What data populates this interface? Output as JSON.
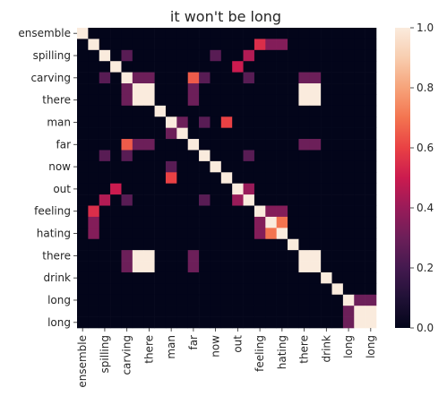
{
  "chart_data": {
    "type": "heatmap",
    "title": "it won't be long",
    "xlabel": "",
    "ylabel": "",
    "row_labels": [
      "ensemble",
      "",
      "spilling",
      "",
      "carving",
      "",
      "there",
      "",
      "man",
      "",
      "far",
      "",
      "now",
      "",
      "out",
      "",
      "feeling",
      "",
      "hating",
      "",
      "there",
      "",
      "drink",
      "",
      "long",
      "",
      "long"
    ],
    "col_labels": [
      "ensemble",
      "",
      "spilling",
      "",
      "carving",
      "",
      "there",
      "",
      "man",
      "",
      "far",
      "",
      "now",
      "",
      "out",
      "",
      "feeling",
      "",
      "hating",
      "",
      "there",
      "",
      "drink",
      "",
      "long",
      "",
      "long"
    ],
    "values": [
      [
        1,
        0,
        0,
        0,
        0,
        0,
        0,
        0,
        0,
        0,
        0,
        0,
        0,
        0,
        0,
        0,
        0,
        0,
        0,
        0,
        0,
        0,
        0,
        0,
        0,
        0,
        0
      ],
      [
        0,
        1,
        0,
        0,
        0,
        0,
        0,
        0,
        0,
        0,
        0,
        0,
        0,
        0,
        0,
        0,
        0.55,
        0.35,
        0.35,
        0,
        0,
        0,
        0,
        0,
        0,
        0,
        0
      ],
      [
        0,
        0,
        1,
        0,
        0.25,
        0,
        0,
        0,
        0,
        0,
        0,
        0,
        0.25,
        0,
        0,
        0.45,
        0,
        0,
        0,
        0,
        0,
        0,
        0,
        0,
        0,
        0,
        0
      ],
      [
        0,
        0,
        0,
        1,
        0,
        0,
        0,
        0,
        0,
        0,
        0,
        0,
        0,
        0,
        0.5,
        0,
        0,
        0,
        0,
        0,
        0,
        0,
        0,
        0,
        0,
        0,
        0
      ],
      [
        0,
        0,
        0.25,
        0,
        1,
        0.3,
        0.3,
        0,
        0,
        0,
        0.65,
        0.25,
        0,
        0,
        0,
        0.25,
        0,
        0,
        0,
        0,
        0.3,
        0.3,
        0,
        0,
        0,
        0,
        0
      ],
      [
        0,
        0,
        0,
        0,
        0.3,
        1,
        1,
        0,
        0,
        0,
        0.3,
        0,
        0,
        0,
        0,
        0,
        0,
        0,
        0,
        0,
        1,
        1,
        0,
        0,
        0,
        0,
        0
      ],
      [
        0,
        0,
        0,
        0,
        0.3,
        1,
        1,
        0,
        0,
        0,
        0.3,
        0,
        0,
        0,
        0,
        0,
        0,
        0,
        0,
        0,
        1,
        1,
        0,
        0,
        0,
        0,
        0
      ],
      [
        0,
        0,
        0,
        0,
        0,
        0,
        0,
        1,
        0,
        0,
        0,
        0,
        0,
        0,
        0,
        0,
        0,
        0,
        0,
        0,
        0,
        0,
        0,
        0,
        0,
        0,
        0
      ],
      [
        0,
        0,
        0,
        0,
        0,
        0,
        0,
        0,
        1,
        0.3,
        0,
        0.25,
        0,
        0.6,
        0,
        0,
        0,
        0,
        0,
        0,
        0,
        0,
        0,
        0,
        0,
        0,
        0
      ],
      [
        0,
        0,
        0,
        0,
        0,
        0,
        0,
        0,
        0.3,
        1,
        0,
        0,
        0,
        0,
        0,
        0,
        0,
        0,
        0,
        0,
        0,
        0,
        0,
        0,
        0,
        0,
        0
      ],
      [
        0,
        0,
        0,
        0,
        0.65,
        0.3,
        0.3,
        0,
        0,
        0,
        1,
        0,
        0,
        0,
        0,
        0,
        0,
        0,
        0,
        0,
        0.3,
        0.3,
        0,
        0,
        0,
        0,
        0
      ],
      [
        0,
        0,
        0.25,
        0,
        0.25,
        0,
        0,
        0,
        0,
        0,
        0,
        1,
        0,
        0,
        0,
        0.25,
        0,
        0,
        0,
        0,
        0,
        0,
        0,
        0,
        0,
        0,
        0
      ],
      [
        0,
        0,
        0,
        0,
        0,
        0,
        0,
        0,
        0.25,
        0,
        0,
        0,
        1,
        0,
        0,
        0,
        0,
        0,
        0,
        0,
        0,
        0,
        0,
        0,
        0,
        0,
        0
      ],
      [
        0,
        0,
        0,
        0,
        0,
        0,
        0,
        0,
        0.6,
        0,
        0,
        0,
        0,
        1,
        0,
        0,
        0,
        0,
        0,
        0,
        0,
        0,
        0,
        0,
        0,
        0,
        0
      ],
      [
        0,
        0,
        0,
        0.5,
        0,
        0,
        0,
        0,
        0,
        0,
        0,
        0,
        0,
        0,
        1,
        0.4,
        0,
        0,
        0,
        0,
        0,
        0,
        0,
        0,
        0,
        0,
        0
      ],
      [
        0,
        0,
        0.45,
        0,
        0.25,
        0,
        0,
        0,
        0,
        0,
        0,
        0.25,
        0,
        0,
        0.4,
        1,
        0,
        0,
        0,
        0,
        0,
        0,
        0,
        0,
        0,
        0,
        0
      ],
      [
        0,
        0.55,
        0,
        0,
        0,
        0,
        0,
        0,
        0,
        0,
        0,
        0,
        0,
        0,
        0,
        0,
        1,
        0.35,
        0.35,
        0,
        0,
        0,
        0,
        0,
        0,
        0,
        0
      ],
      [
        0,
        0.35,
        0,
        0,
        0,
        0,
        0,
        0,
        0,
        0,
        0,
        0,
        0,
        0,
        0,
        0,
        0.35,
        1,
        0.7,
        0,
        0,
        0,
        0,
        0,
        0,
        0,
        0
      ],
      [
        0,
        0.35,
        0,
        0,
        0,
        0,
        0,
        0,
        0,
        0,
        0,
        0,
        0,
        0,
        0,
        0,
        0.35,
        0.7,
        1,
        0,
        0,
        0,
        0,
        0,
        0,
        0,
        0
      ],
      [
        0,
        0,
        0,
        0,
        0,
        0,
        0,
        0,
        0,
        0,
        0,
        0,
        0,
        0,
        0,
        0,
        0,
        0,
        0,
        1,
        0,
        0,
        0,
        0,
        0,
        0,
        0
      ],
      [
        0,
        0,
        0,
        0,
        0.3,
        1,
        1,
        0,
        0,
        0,
        0.3,
        0,
        0,
        0,
        0,
        0,
        0,
        0,
        0,
        0,
        1,
        1,
        0,
        0,
        0,
        0,
        0
      ],
      [
        0,
        0,
        0,
        0,
        0.3,
        1,
        1,
        0,
        0,
        0,
        0.3,
        0,
        0,
        0,
        0,
        0,
        0,
        0,
        0,
        0,
        1,
        1,
        0,
        0,
        0,
        0,
        0
      ],
      [
        0,
        0,
        0,
        0,
        0,
        0,
        0,
        0,
        0,
        0,
        0,
        0,
        0,
        0,
        0,
        0,
        0,
        0,
        0,
        0,
        0,
        0,
        1,
        0,
        0,
        0,
        0
      ],
      [
        0,
        0,
        0,
        0,
        0,
        0,
        0,
        0,
        0,
        0,
        0,
        0,
        0,
        0,
        0,
        0,
        0,
        0,
        0,
        0,
        0,
        0,
        0,
        1,
        0,
        0,
        0
      ],
      [
        0,
        0,
        0,
        0,
        0,
        0,
        0,
        0,
        0,
        0,
        0,
        0,
        0,
        0,
        0,
        0,
        0,
        0,
        0,
        0,
        0,
        0,
        0,
        0,
        1,
        0.3,
        0.3
      ],
      [
        0,
        0,
        0,
        0,
        0,
        0,
        0,
        0,
        0,
        0,
        0,
        0,
        0,
        0,
        0,
        0,
        0,
        0,
        0,
        0,
        0,
        0,
        0,
        0,
        0.3,
        1,
        1
      ],
      [
        0,
        0,
        0,
        0,
        0,
        0,
        0,
        0,
        0,
        0,
        0,
        0,
        0,
        0,
        0,
        0,
        0,
        0,
        0,
        0,
        0,
        0,
        0,
        0,
        0.3,
        1,
        1
      ]
    ],
    "vmin": 0,
    "vmax": 1,
    "colormap": "rocket",
    "colorbar_ticks": [
      "0.0",
      "0.2",
      "0.4",
      "0.6",
      "0.8",
      "1.0"
    ],
    "grid": false,
    "legend": "colorbar-right"
  }
}
